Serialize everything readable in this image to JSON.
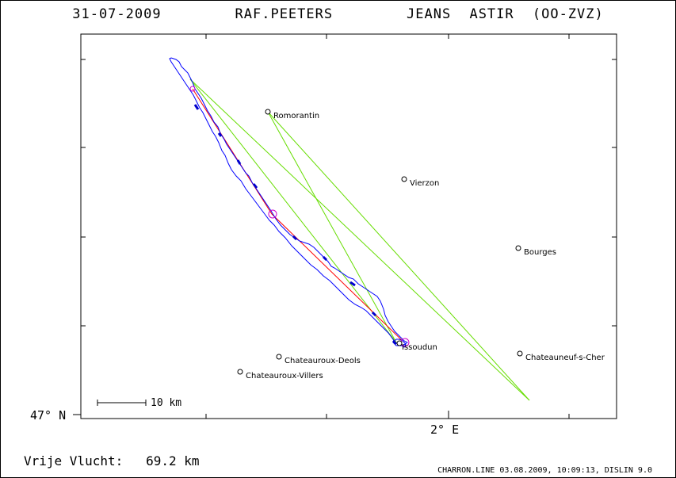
{
  "title": "31-07-2009    RAF.PEETERS    JEANS ASTIR (OO-ZVZ)",
  "axes": {
    "lat_label": "47° N",
    "lon_label": "2° E"
  },
  "scale": {
    "label": "10 km"
  },
  "distance": {
    "text": "Vrije Vlucht:   69.2 km"
  },
  "footer": "CHARRON.LINE 03.08.2009, 10:09:13, DISLIN 9.0",
  "cities": [
    {
      "name": "Romorantin"
    },
    {
      "name": "Vierzon"
    },
    {
      "name": "Bourges"
    },
    {
      "name": "Issoudun"
    },
    {
      "name": "Chateauroux-Deols"
    },
    {
      "name": "Chateauroux-Villers"
    },
    {
      "name": "Chateauneuf-s-Cher"
    }
  ],
  "colors": {
    "track": "#0000ff",
    "climb": "#0000cc",
    "course_line": "#ff0000",
    "triangle_lines": "#66dd00",
    "turnpoint": "#cc00cc",
    "frame": "#000000"
  }
}
